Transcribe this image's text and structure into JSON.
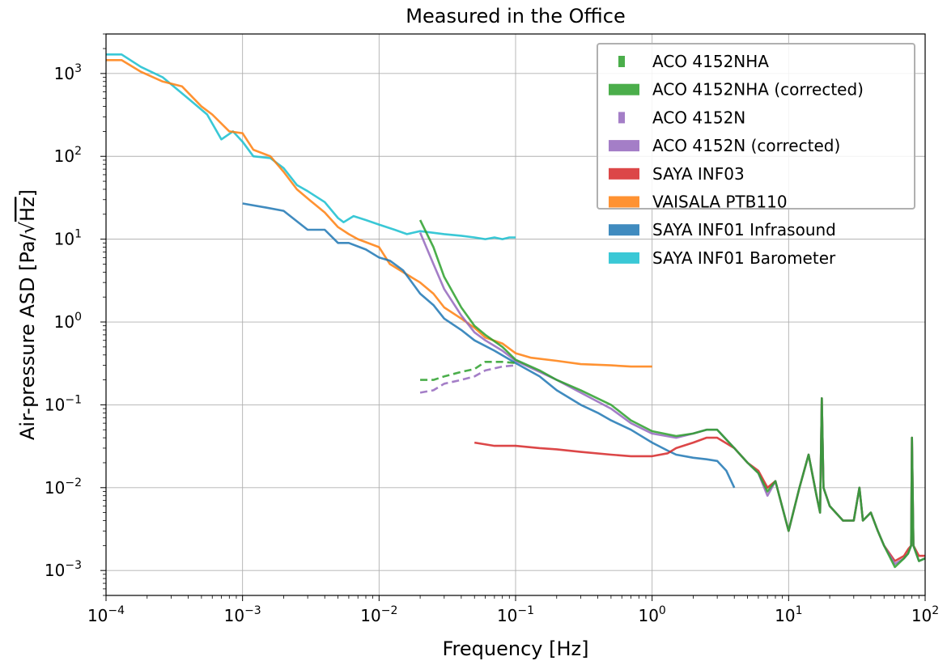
{
  "chart_data": {
    "type": "line",
    "title": "Measured in the Office",
    "xlabel": "Frequency [Hz]",
    "ylabel_prefix": "Air-pressure ASD [Pa/",
    "ylabel_radicand": "Hz",
    "ylabel_suffix": "]",
    "x_scale": "log",
    "y_scale": "log",
    "xlim": [
      0.0001,
      100
    ],
    "ylim": [
      0.0005,
      3000
    ],
    "grid": true,
    "legend_position": "top-right",
    "x_ticks": [
      {
        "value": 0.0001,
        "base": "10",
        "exp": "−4"
      },
      {
        "value": 0.001,
        "base": "10",
        "exp": "−3"
      },
      {
        "value": 0.01,
        "base": "10",
        "exp": "−2"
      },
      {
        "value": 0.1,
        "base": "10",
        "exp": "−1"
      },
      {
        "value": 1,
        "base": "10",
        "exp": "0"
      },
      {
        "value": 10,
        "base": "10",
        "exp": "1"
      },
      {
        "value": 100,
        "base": "10",
        "exp": "2"
      }
    ],
    "y_ticks": [
      {
        "value": 0.001,
        "base": "10",
        "exp": "−3"
      },
      {
        "value": 0.01,
        "base": "10",
        "exp": "−2"
      },
      {
        "value": 0.1,
        "base": "10",
        "exp": "−1"
      },
      {
        "value": 1,
        "base": "10",
        "exp": "0"
      },
      {
        "value": 10,
        "base": "10",
        "exp": "1"
      },
      {
        "value": 100,
        "base": "10",
        "exp": "2"
      },
      {
        "value": 1000,
        "base": "10",
        "exp": "3"
      }
    ],
    "series": [
      {
        "name": "SAYA INF01 Barometer",
        "color": "#17becf",
        "dash": "solid",
        "points": [
          [
            0.0001,
            1700
          ],
          [
            0.00013,
            1700
          ],
          [
            0.00018,
            1200
          ],
          [
            0.00026,
            900
          ],
          [
            0.0004,
            500
          ],
          [
            0.00055,
            320
          ],
          [
            0.0007,
            160
          ],
          [
            0.00085,
            200
          ],
          [
            0.001,
            150
          ],
          [
            0.0012,
            100
          ],
          [
            0.0016,
            95
          ],
          [
            0.002,
            72
          ],
          [
            0.0025,
            45
          ],
          [
            0.003,
            38
          ],
          [
            0.004,
            28
          ],
          [
            0.005,
            18
          ],
          [
            0.0055,
            16
          ],
          [
            0.0065,
            19
          ],
          [
            0.008,
            17
          ],
          [
            0.01,
            15
          ],
          [
            0.013,
            13
          ],
          [
            0.016,
            11.5
          ],
          [
            0.02,
            12.5
          ],
          [
            0.03,
            11.5
          ],
          [
            0.04,
            11
          ],
          [
            0.05,
            10.5
          ],
          [
            0.06,
            10
          ],
          [
            0.07,
            10.5
          ],
          [
            0.08,
            10
          ],
          [
            0.09,
            10.5
          ],
          [
            0.1,
            10.5
          ]
        ]
      },
      {
        "name": "VAISALA PTB110",
        "color": "#ff7f0e",
        "dash": "solid",
        "points": [
          [
            0.0001,
            1450
          ],
          [
            0.00013,
            1450
          ],
          [
            0.00018,
            1050
          ],
          [
            0.00026,
            800
          ],
          [
            0.00036,
            700
          ],
          [
            0.0005,
            400
          ],
          [
            0.0006,
            320
          ],
          [
            0.0008,
            200
          ],
          [
            0.001,
            190
          ],
          [
            0.0012,
            120
          ],
          [
            0.0016,
            100
          ],
          [
            0.002,
            65
          ],
          [
            0.0025,
            40
          ],
          [
            0.003,
            31
          ],
          [
            0.004,
            21
          ],
          [
            0.005,
            14
          ],
          [
            0.006,
            11.5
          ],
          [
            0.007,
            10
          ],
          [
            0.01,
            8
          ],
          [
            0.012,
            5
          ],
          [
            0.015,
            4
          ],
          [
            0.02,
            3
          ],
          [
            0.025,
            2.2
          ],
          [
            0.03,
            1.5
          ],
          [
            0.04,
            1.1
          ],
          [
            0.05,
            0.85
          ],
          [
            0.06,
            0.65
          ],
          [
            0.08,
            0.55
          ],
          [
            0.1,
            0.42
          ],
          [
            0.13,
            0.37
          ],
          [
            0.2,
            0.34
          ],
          [
            0.3,
            0.31
          ],
          [
            0.5,
            0.3
          ],
          [
            0.7,
            0.29
          ],
          [
            1.0,
            0.29
          ]
        ]
      },
      {
        "name": "SAYA INF01 Infrasound",
        "color": "#1f77b4",
        "dash": "solid",
        "points": [
          [
            0.001,
            27
          ],
          [
            0.0015,
            24
          ],
          [
            0.002,
            22
          ],
          [
            0.003,
            13
          ],
          [
            0.004,
            13
          ],
          [
            0.005,
            9
          ],
          [
            0.006,
            9
          ],
          [
            0.008,
            7.5
          ],
          [
            0.01,
            6
          ],
          [
            0.012,
            5.5
          ],
          [
            0.015,
            4.2
          ],
          [
            0.02,
            2.2
          ],
          [
            0.025,
            1.6
          ],
          [
            0.03,
            1.1
          ],
          [
            0.04,
            0.8
          ],
          [
            0.05,
            0.6
          ],
          [
            0.07,
            0.45
          ],
          [
            0.1,
            0.32
          ],
          [
            0.15,
            0.22
          ],
          [
            0.2,
            0.15
          ],
          [
            0.3,
            0.1
          ],
          [
            0.4,
            0.08
          ],
          [
            0.5,
            0.065
          ],
          [
            0.7,
            0.05
          ],
          [
            1.0,
            0.035
          ],
          [
            1.3,
            0.028
          ],
          [
            1.5,
            0.025
          ],
          [
            2.0,
            0.023
          ],
          [
            2.5,
            0.022
          ],
          [
            3.0,
            0.021
          ],
          [
            3.5,
            0.016
          ],
          [
            4.0,
            0.01
          ]
        ]
      },
      {
        "name": "SAYA INF03",
        "color": "#d62728",
        "dash": "solid",
        "points": [
          [
            0.05,
            0.035
          ],
          [
            0.07,
            0.032
          ],
          [
            0.1,
            0.032
          ],
          [
            0.15,
            0.03
          ],
          [
            0.2,
            0.029
          ],
          [
            0.3,
            0.027
          ],
          [
            0.5,
            0.025
          ],
          [
            0.7,
            0.024
          ],
          [
            1.0,
            0.024
          ],
          [
            1.3,
            0.026
          ],
          [
            1.5,
            0.03
          ],
          [
            2.0,
            0.035
          ],
          [
            2.5,
            0.04
          ],
          [
            3.0,
            0.04
          ],
          [
            4.0,
            0.03
          ],
          [
            5.0,
            0.02
          ],
          [
            6.0,
            0.016
          ],
          [
            7.0,
            0.01
          ],
          [
            8.0,
            0.012
          ],
          [
            10.0,
            0.003
          ],
          [
            12,
            0.01
          ],
          [
            14,
            0.025
          ],
          [
            16,
            0.008
          ],
          [
            17,
            0.005
          ],
          [
            17.5,
            0.12
          ],
          [
            18,
            0.01
          ],
          [
            20,
            0.006
          ],
          [
            25,
            0.004
          ],
          [
            30,
            0.004
          ],
          [
            33,
            0.01
          ],
          [
            35,
            0.004
          ],
          [
            40,
            0.005
          ],
          [
            45,
            0.003
          ],
          [
            50,
            0.002
          ],
          [
            60,
            0.0013
          ],
          [
            70,
            0.0015
          ],
          [
            75,
            0.0018
          ],
          [
            79,
            0.002
          ],
          [
            80,
            0.04
          ],
          [
            82,
            0.002
          ],
          [
            90,
            0.0015
          ],
          [
            100,
            0.0015
          ]
        ]
      },
      {
        "name": "ACO 4152N (corrected)",
        "color": "#9467bd",
        "dash": "solid",
        "points": [
          [
            0.02,
            12
          ],
          [
            0.025,
            5
          ],
          [
            0.03,
            2.5
          ],
          [
            0.04,
            1.2
          ],
          [
            0.05,
            0.75
          ],
          [
            0.06,
            0.6
          ],
          [
            0.08,
            0.45
          ],
          [
            0.1,
            0.34
          ],
          [
            0.15,
            0.25
          ],
          [
            0.2,
            0.2
          ],
          [
            0.3,
            0.14
          ],
          [
            0.5,
            0.09
          ],
          [
            0.7,
            0.06
          ],
          [
            1.0,
            0.045
          ],
          [
            1.5,
            0.04
          ],
          [
            2.0,
            0.045
          ],
          [
            2.5,
            0.05
          ],
          [
            3.0,
            0.05
          ],
          [
            4.0,
            0.03
          ],
          [
            5.0,
            0.02
          ],
          [
            6.0,
            0.015
          ],
          [
            7.0,
            0.008
          ],
          [
            8.0,
            0.012
          ],
          [
            10.0,
            0.003
          ],
          [
            12,
            0.01
          ],
          [
            14,
            0.025
          ],
          [
            16,
            0.008
          ],
          [
            17,
            0.005
          ],
          [
            17.5,
            0.12
          ],
          [
            18,
            0.01
          ],
          [
            20,
            0.006
          ],
          [
            25,
            0.004
          ],
          [
            30,
            0.004
          ],
          [
            33,
            0.01
          ],
          [
            35,
            0.004
          ],
          [
            40,
            0.005
          ],
          [
            45,
            0.003
          ],
          [
            50,
            0.002
          ],
          [
            60,
            0.0012
          ],
          [
            70,
            0.0014
          ],
          [
            75,
            0.0016
          ],
          [
            79,
            0.002
          ],
          [
            80,
            0.04
          ],
          [
            82,
            0.002
          ],
          [
            90,
            0.0013
          ],
          [
            100,
            0.0014
          ]
        ]
      },
      {
        "name": "ACO 4152NHA (corrected)",
        "color": "#2ca02c",
        "dash": "solid",
        "points": [
          [
            0.02,
            17
          ],
          [
            0.025,
            8
          ],
          [
            0.03,
            3.5
          ],
          [
            0.04,
            1.5
          ],
          [
            0.05,
            0.9
          ],
          [
            0.06,
            0.7
          ],
          [
            0.08,
            0.5
          ],
          [
            0.1,
            0.35
          ],
          [
            0.15,
            0.26
          ],
          [
            0.2,
            0.2
          ],
          [
            0.3,
            0.15
          ],
          [
            0.5,
            0.1
          ],
          [
            0.7,
            0.065
          ],
          [
            1.0,
            0.048
          ],
          [
            1.5,
            0.042
          ],
          [
            2.0,
            0.045
          ],
          [
            2.5,
            0.05
          ],
          [
            3.0,
            0.05
          ],
          [
            4.0,
            0.03
          ],
          [
            5.0,
            0.02
          ],
          [
            6.0,
            0.015
          ],
          [
            7.0,
            0.009
          ],
          [
            8.0,
            0.012
          ],
          [
            10.0,
            0.003
          ],
          [
            12,
            0.01
          ],
          [
            14,
            0.025
          ],
          [
            16,
            0.008
          ],
          [
            17,
            0.005
          ],
          [
            17.5,
            0.12
          ],
          [
            18,
            0.01
          ],
          [
            20,
            0.006
          ],
          [
            25,
            0.004
          ],
          [
            30,
            0.004
          ],
          [
            33,
            0.01
          ],
          [
            35,
            0.004
          ],
          [
            40,
            0.005
          ],
          [
            45,
            0.003
          ],
          [
            50,
            0.002
          ],
          [
            60,
            0.0011
          ],
          [
            70,
            0.0014
          ],
          [
            75,
            0.0016
          ],
          [
            79,
            0.002
          ],
          [
            80,
            0.04
          ],
          [
            82,
            0.002
          ],
          [
            90,
            0.0013
          ],
          [
            100,
            0.0014
          ]
        ]
      },
      {
        "name": "ACO 4152N",
        "color": "#9467bd",
        "dash": "dashed",
        "points": [
          [
            0.02,
            0.14
          ],
          [
            0.025,
            0.15
          ],
          [
            0.03,
            0.18
          ],
          [
            0.04,
            0.2
          ],
          [
            0.05,
            0.22
          ],
          [
            0.06,
            0.26
          ],
          [
            0.08,
            0.29
          ],
          [
            0.1,
            0.3
          ]
        ]
      },
      {
        "name": "ACO 4152NHA",
        "color": "#2ca02c",
        "dash": "dashed",
        "points": [
          [
            0.02,
            0.2
          ],
          [
            0.025,
            0.2
          ],
          [
            0.03,
            0.22
          ],
          [
            0.04,
            0.25
          ],
          [
            0.05,
            0.27
          ],
          [
            0.06,
            0.33
          ],
          [
            0.08,
            0.33
          ],
          [
            0.1,
            0.32
          ]
        ]
      }
    ],
    "legend": [
      {
        "label": "ACO 4152NHA",
        "color": "#2ca02c",
        "style": "dashed"
      },
      {
        "label": "ACO 4152NHA (corrected)",
        "color": "#2ca02c",
        "style": "solid"
      },
      {
        "label": "ACO 4152N",
        "color": "#9467bd",
        "style": "dashed"
      },
      {
        "label": "ACO 4152N (corrected)",
        "color": "#9467bd",
        "style": "solid"
      },
      {
        "label": "SAYA INF03",
        "color": "#d62728",
        "style": "solid"
      },
      {
        "label": "VAISALA PTB110",
        "color": "#ff7f0e",
        "style": "solid"
      },
      {
        "label": "SAYA INF01 Infrasound",
        "color": "#1f77b4",
        "style": "solid"
      },
      {
        "label": "SAYA INF01 Barometer",
        "color": "#17becf",
        "style": "solid"
      }
    ]
  }
}
